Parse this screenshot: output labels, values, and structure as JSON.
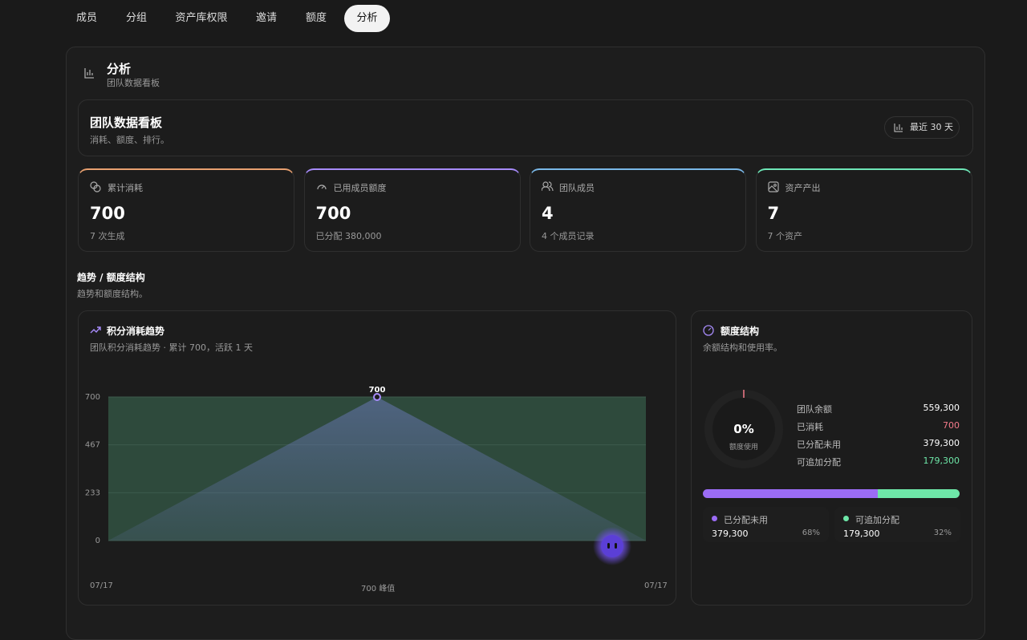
{
  "tabs": [
    "成员",
    "分组",
    "资产库权限",
    "邀请",
    "额度",
    "分析"
  ],
  "header": {
    "title": "分析",
    "subtitle": "团队数据看板"
  },
  "dashboard": {
    "title": "团队数据看板",
    "subtitle": "消耗、额度、排行。",
    "range_button": "最近 30 天"
  },
  "stats": [
    {
      "label": "累计消耗",
      "value": "700",
      "note": "7 次生成"
    },
    {
      "label": "已用成员额度",
      "value": "700",
      "note": "已分配 380,000"
    },
    {
      "label": "团队成员",
      "value": "4",
      "note": "4 个成员记录"
    },
    {
      "label": "资产产出",
      "value": "7",
      "note": "7 个资产"
    }
  ],
  "section": {
    "title": "趋势 / 额度结构",
    "subtitle": "趋势和额度结构。"
  },
  "trend": {
    "title": "积分消耗趋势",
    "subtitle": "团队积分消耗趋势 · 累计 700，活跃 1 天",
    "footer": [
      "07/17",
      "700 峰值",
      "07/17"
    ]
  },
  "chart_data": {
    "type": "area",
    "categories": [
      null,
      null,
      null
    ],
    "values": [
      0,
      700,
      0
    ],
    "color": "#a78bfa",
    "ylim": [
      0,
      700
    ],
    "yticks": [
      0,
      233,
      467,
      700
    ],
    "grid": true
  },
  "quota": {
    "title": "额度结构",
    "subtitle": "余额结构和使用率。",
    "usage": {
      "value": 0,
      "label": "0%",
      "caption": "额度使用"
    },
    "rows": [
      {
        "label": "团队余额",
        "value": "559,300"
      },
      {
        "label": "已消耗",
        "value": "700"
      },
      {
        "label": "已分配未用",
        "value": "379,300"
      },
      {
        "label": "可追加分配",
        "value": "179,300"
      }
    ],
    "legend": [
      {
        "label": "已分配未用",
        "amount": "379,300",
        "share": 68,
        "share_label": "68%",
        "color": "#9b6cf5"
      },
      {
        "label": "可追加分配",
        "amount": "179,300",
        "share": 32,
        "share_label": "32%",
        "color": "#6ee7a8"
      }
    ]
  }
}
